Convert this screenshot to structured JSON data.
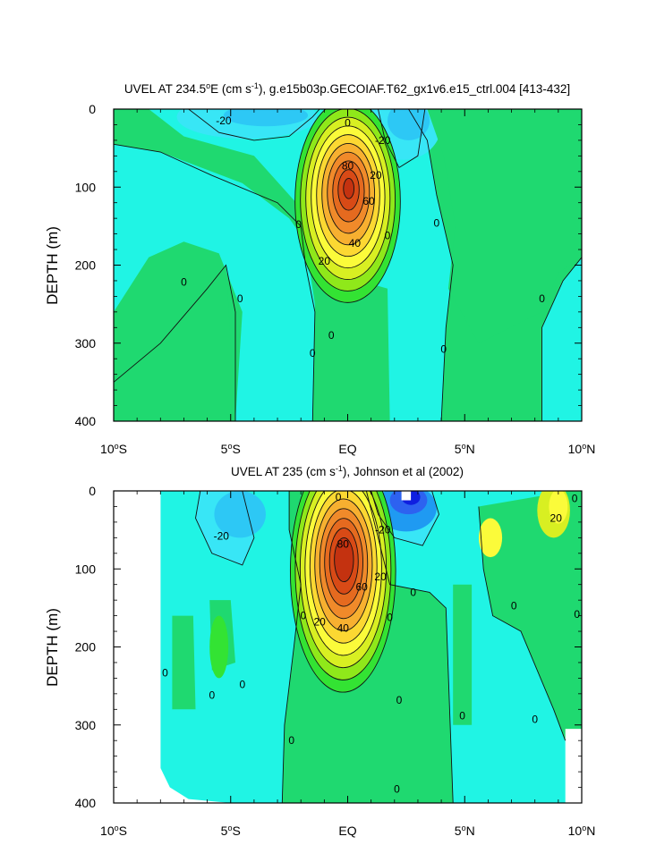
{
  "chart_data": [
    {
      "type": "contour",
      "title_prefix": "UVEL AT 234.5",
      "title_mid": "E (cm s",
      "title_suffix": "), g.e15b03p.GECOIAF.T62_gx1v6.e15_ctrl.004 [413-432]",
      "title_degree": "o",
      "title_exponent": "-1",
      "ylabel": "DEPTH (m)",
      "xlim": [
        -10,
        10
      ],
      "ylim": [
        0,
        400
      ],
      "yticks": [
        0,
        100,
        200,
        300,
        400
      ],
      "xticks": [
        {
          "pos": -10,
          "main": "10",
          "sup": "o",
          "post": "S"
        },
        {
          "pos": -5,
          "main": "5",
          "sup": "o",
          "post": "S"
        },
        {
          "pos": 0,
          "main": "EQ",
          "sup": "",
          "post": ""
        },
        {
          "pos": 5,
          "main": "5",
          "sup": "o",
          "post": "N"
        },
        {
          "pos": 10,
          "main": "10",
          "sup": "o",
          "post": "N"
        }
      ],
      "jet_core": {
        "lat": 0,
        "depth": 100,
        "max_value": 90
      },
      "contour_labels": [
        {
          "lat": -5.3,
          "depth": 15,
          "text": "-20"
        },
        {
          "lat": 1.5,
          "depth": 40,
          "text": "-20"
        },
        {
          "lat": 0.0,
          "depth": 18,
          "text": "0"
        },
        {
          "lat": 0.0,
          "depth": 73,
          "text": "80"
        },
        {
          "lat": 1.2,
          "depth": 85,
          "text": "20"
        },
        {
          "lat": 0.9,
          "depth": 118,
          "text": "60"
        },
        {
          "lat": 0.3,
          "depth": 172,
          "text": "40"
        },
        {
          "lat": -1.0,
          "depth": 195,
          "text": "20"
        },
        {
          "lat": -2.1,
          "depth": 148,
          "text": "0"
        },
        {
          "lat": 1.7,
          "depth": 162,
          "text": "0"
        },
        {
          "lat": 3.8,
          "depth": 146,
          "text": "0"
        },
        {
          "lat": -7.0,
          "depth": 222,
          "text": "0"
        },
        {
          "lat": -4.6,
          "depth": 243,
          "text": "0"
        },
        {
          "lat": 8.3,
          "depth": 243,
          "text": "0"
        },
        {
          "lat": -0.7,
          "depth": 290,
          "text": "0"
        },
        {
          "lat": -1.5,
          "depth": 313,
          "text": "0"
        },
        {
          "lat": 4.1,
          "depth": 308,
          "text": "0"
        }
      ]
    },
    {
      "type": "contour",
      "title_prefix": "UVEL AT 235 (cm s",
      "title_suffix": "), Johnson et al (2002)",
      "title_exponent": "-1",
      "ylabel": "DEPTH (m)",
      "xlim": [
        -10,
        10
      ],
      "ylim": [
        0,
        400
      ],
      "yticks": [
        0,
        100,
        200,
        300,
        400
      ],
      "xticks": [
        {
          "pos": -10,
          "main": "10",
          "sup": "o",
          "post": "S"
        },
        {
          "pos": -5,
          "main": "5",
          "sup": "o",
          "post": "S"
        },
        {
          "pos": 0,
          "main": "EQ",
          "sup": "",
          "post": ""
        },
        {
          "pos": 5,
          "main": "5",
          "sup": "o",
          "post": "N"
        },
        {
          "pos": 10,
          "main": "10",
          "sup": "o",
          "post": "N"
        }
      ],
      "jet_core": {
        "lat": -0.2,
        "depth": 85,
        "max_value": 100
      },
      "data_extent": {
        "lat_min": -8,
        "lat_max": 10
      },
      "contour_labels": [
        {
          "lat": -5.4,
          "depth": 58,
          "text": "-20"
        },
        {
          "lat": -0.4,
          "depth": 8,
          "text": "0"
        },
        {
          "lat": 1.5,
          "depth": 50,
          "text": "-20"
        },
        {
          "lat": -0.2,
          "depth": 68,
          "text": "80"
        },
        {
          "lat": 1.4,
          "depth": 110,
          "text": "20"
        },
        {
          "lat": 0.6,
          "depth": 123,
          "text": "60"
        },
        {
          "lat": -0.2,
          "depth": 176,
          "text": "40"
        },
        {
          "lat": -1.2,
          "depth": 168,
          "text": "20"
        },
        {
          "lat": -1.9,
          "depth": 160,
          "text": "0"
        },
        {
          "lat": 1.8,
          "depth": 162,
          "text": "0"
        },
        {
          "lat": 2.8,
          "depth": 130,
          "text": "0"
        },
        {
          "lat": 7.1,
          "depth": 147,
          "text": "0"
        },
        {
          "lat": 9.8,
          "depth": 158,
          "text": "0"
        },
        {
          "lat": 8.9,
          "depth": 35,
          "text": "20"
        },
        {
          "lat": 9.7,
          "depth": 10,
          "text": "0"
        },
        {
          "lat": -7.8,
          "depth": 233,
          "text": "0"
        },
        {
          "lat": -5.8,
          "depth": 262,
          "text": "0"
        },
        {
          "lat": -4.5,
          "depth": 248,
          "text": "0"
        },
        {
          "lat": -2.4,
          "depth": 320,
          "text": "0"
        },
        {
          "lat": 2.2,
          "depth": 268,
          "text": "0"
        },
        {
          "lat": 4.9,
          "depth": 288,
          "text": "0"
        },
        {
          "lat": 8.0,
          "depth": 293,
          "text": "0"
        },
        {
          "lat": 2.1,
          "depth": 382,
          "text": "0"
        }
      ]
    }
  ],
  "colors": {
    "levels": [
      "#0f1fe0",
      "#2d62f0",
      "#1f9af2",
      "#2dc8f5",
      "#38e6f6",
      "#20f4e4",
      "#1fd970",
      "#33e333",
      "#8fe81a",
      "#d8ef22",
      "#fbfb3a",
      "#fcd832",
      "#f7b030",
      "#f08a2a",
      "#e56a1f",
      "#d84a16",
      "#c43210",
      "#a82010"
    ],
    "line": "#111111",
    "background": "#ffffff",
    "axis": "#000000"
  }
}
